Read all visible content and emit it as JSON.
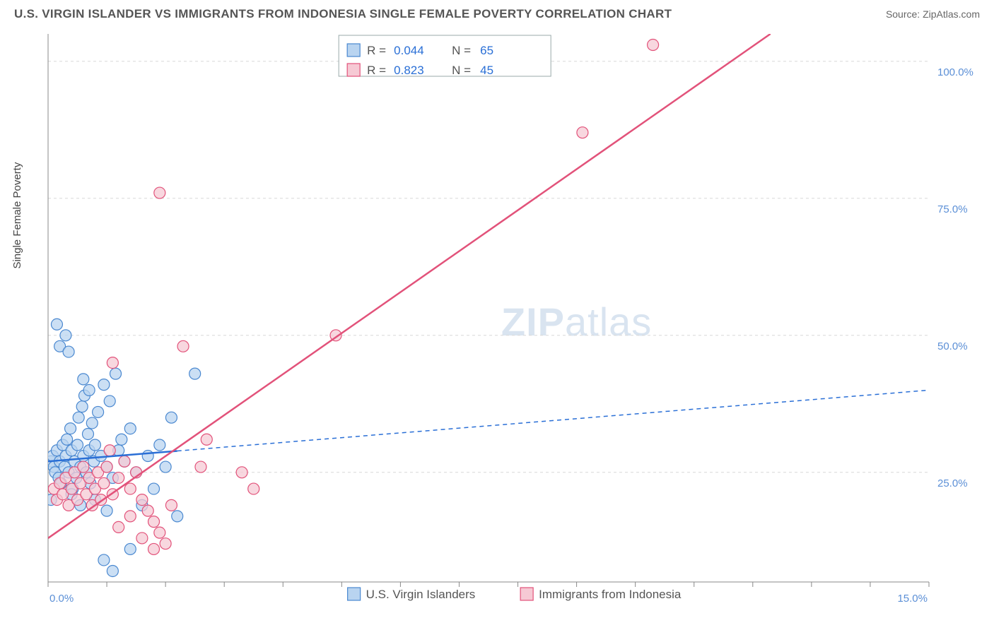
{
  "header": {
    "title": "U.S. VIRGIN ISLANDER VS IMMIGRANTS FROM INDONESIA SINGLE FEMALE POVERTY CORRELATION CHART",
    "source": "Source: ZipAtlas.com"
  },
  "chart": {
    "type": "scatter",
    "ylabel": "Single Female Poverty",
    "xlim": [
      0,
      15
    ],
    "ylim": [
      5,
      105
    ],
    "xticks": [
      0,
      15
    ],
    "xtick_labels": [
      "0.0%",
      "15.0%"
    ],
    "xtick_minor": [
      0,
      1,
      2,
      3,
      4,
      5,
      6,
      7,
      8,
      9,
      10,
      11,
      12,
      13,
      14,
      15
    ],
    "yticks": [
      25,
      50,
      75,
      100
    ],
    "ytick_labels": [
      "25.0%",
      "50.0%",
      "75.0%",
      "100.0%"
    ],
    "background_color": "#ffffff",
    "grid_color": "#d8d8d8",
    "axis_color": "#888888",
    "watermark": {
      "text_bold": "ZIP",
      "text_light": "atlas",
      "color": "#d9e4f0"
    },
    "series": [
      {
        "name": "U.S. Virgin Islanders",
        "marker_fill": "#b9d4f0",
        "marker_stroke": "#4a88d0",
        "marker_r": 8,
        "marker_opacity": 0.75,
        "trend": {
          "x1": 0,
          "y1": 27,
          "x2": 15,
          "y2": 40,
          "solid_until_x": 2.2,
          "color": "#2a6fd6",
          "width": 2.5,
          "dash": "6 5"
        },
        "R": "0.044",
        "N": "65",
        "points": [
          [
            0.05,
            27
          ],
          [
            0.08,
            28
          ],
          [
            0.1,
            26
          ],
          [
            0.12,
            25
          ],
          [
            0.15,
            29
          ],
          [
            0.18,
            24
          ],
          [
            0.2,
            27
          ],
          [
            0.22,
            23
          ],
          [
            0.25,
            30
          ],
          [
            0.28,
            26
          ],
          [
            0.3,
            28
          ],
          [
            0.32,
            31
          ],
          [
            0.35,
            25
          ],
          [
            0.38,
            33
          ],
          [
            0.4,
            29
          ],
          [
            0.42,
            22
          ],
          [
            0.45,
            27
          ],
          [
            0.48,
            24
          ],
          [
            0.5,
            30
          ],
          [
            0.52,
            35
          ],
          [
            0.55,
            26
          ],
          [
            0.58,
            37
          ],
          [
            0.6,
            28
          ],
          [
            0.62,
            39
          ],
          [
            0.65,
            25
          ],
          [
            0.68,
            32
          ],
          [
            0.7,
            29
          ],
          [
            0.72,
            23
          ],
          [
            0.75,
            34
          ],
          [
            0.78,
            27
          ],
          [
            0.8,
            30
          ],
          [
            0.85,
            36
          ],
          [
            0.9,
            28
          ],
          [
            0.95,
            41
          ],
          [
            1.0,
            26
          ],
          [
            1.05,
            38
          ],
          [
            1.1,
            24
          ],
          [
            1.15,
            43
          ],
          [
            1.2,
            29
          ],
          [
            1.25,
            31
          ],
          [
            1.3,
            27
          ],
          [
            1.4,
            33
          ],
          [
            1.5,
            25
          ],
          [
            1.6,
            19
          ],
          [
            1.7,
            28
          ],
          [
            1.8,
            22
          ],
          [
            1.9,
            30
          ],
          [
            2.0,
            26
          ],
          [
            2.1,
            35
          ],
          [
            2.2,
            17
          ],
          [
            0.2,
            48
          ],
          [
            0.3,
            50
          ],
          [
            0.35,
            47
          ],
          [
            0.15,
            52
          ],
          [
            0.7,
            40
          ],
          [
            0.6,
            42
          ],
          [
            2.5,
            43
          ],
          [
            1.4,
            11
          ],
          [
            0.95,
            9
          ],
          [
            1.1,
            7
          ],
          [
            0.05,
            20
          ],
          [
            0.4,
            21
          ],
          [
            0.55,
            19
          ],
          [
            0.8,
            20
          ],
          [
            1.0,
            18
          ]
        ]
      },
      {
        "name": "Immigrants from Indonesia",
        "marker_fill": "#f6c9d4",
        "marker_stroke": "#e2527a",
        "marker_r": 8,
        "marker_opacity": 0.75,
        "trend": {
          "x1": 0,
          "y1": 13,
          "x2": 12.3,
          "y2": 105,
          "color": "#e2527a",
          "width": 2.5
        },
        "R": "0.823",
        "N": "45",
        "points": [
          [
            0.1,
            22
          ],
          [
            0.15,
            20
          ],
          [
            0.2,
            23
          ],
          [
            0.25,
            21
          ],
          [
            0.3,
            24
          ],
          [
            0.35,
            19
          ],
          [
            0.4,
            22
          ],
          [
            0.45,
            25
          ],
          [
            0.5,
            20
          ],
          [
            0.55,
            23
          ],
          [
            0.6,
            26
          ],
          [
            0.65,
            21
          ],
          [
            0.7,
            24
          ],
          [
            0.75,
            19
          ],
          [
            0.8,
            22
          ],
          [
            0.85,
            25
          ],
          [
            0.9,
            20
          ],
          [
            0.95,
            23
          ],
          [
            1.0,
            26
          ],
          [
            1.05,
            29
          ],
          [
            1.1,
            21
          ],
          [
            1.2,
            24
          ],
          [
            1.3,
            27
          ],
          [
            1.4,
            22
          ],
          [
            1.5,
            25
          ],
          [
            1.6,
            20
          ],
          [
            1.7,
            18
          ],
          [
            1.8,
            16
          ],
          [
            1.9,
            14
          ],
          [
            2.0,
            12
          ],
          [
            1.2,
            15
          ],
          [
            1.4,
            17
          ],
          [
            1.6,
            13
          ],
          [
            1.8,
            11
          ],
          [
            2.1,
            19
          ],
          [
            1.1,
            45
          ],
          [
            2.3,
            48
          ],
          [
            2.7,
            31
          ],
          [
            3.3,
            25
          ],
          [
            3.5,
            22
          ],
          [
            4.9,
            50
          ],
          [
            1.9,
            76
          ],
          [
            9.1,
            87
          ],
          [
            10.3,
            103
          ],
          [
            2.6,
            26
          ]
        ]
      }
    ],
    "top_legend": {
      "rows": [
        {
          "swatch": 0,
          "r_label": "R =",
          "r_val": "0.044",
          "n_label": "N =",
          "n_val": "65"
        },
        {
          "swatch": 1,
          "r_label": "R =",
          "r_val": "0.823",
          "n_label": "N =",
          "n_val": "45"
        }
      ]
    },
    "bottom_legend": {
      "items": [
        {
          "swatch": 0,
          "label": "U.S. Virgin Islanders"
        },
        {
          "swatch": 1,
          "label": "Immigrants from Indonesia"
        }
      ]
    }
  }
}
